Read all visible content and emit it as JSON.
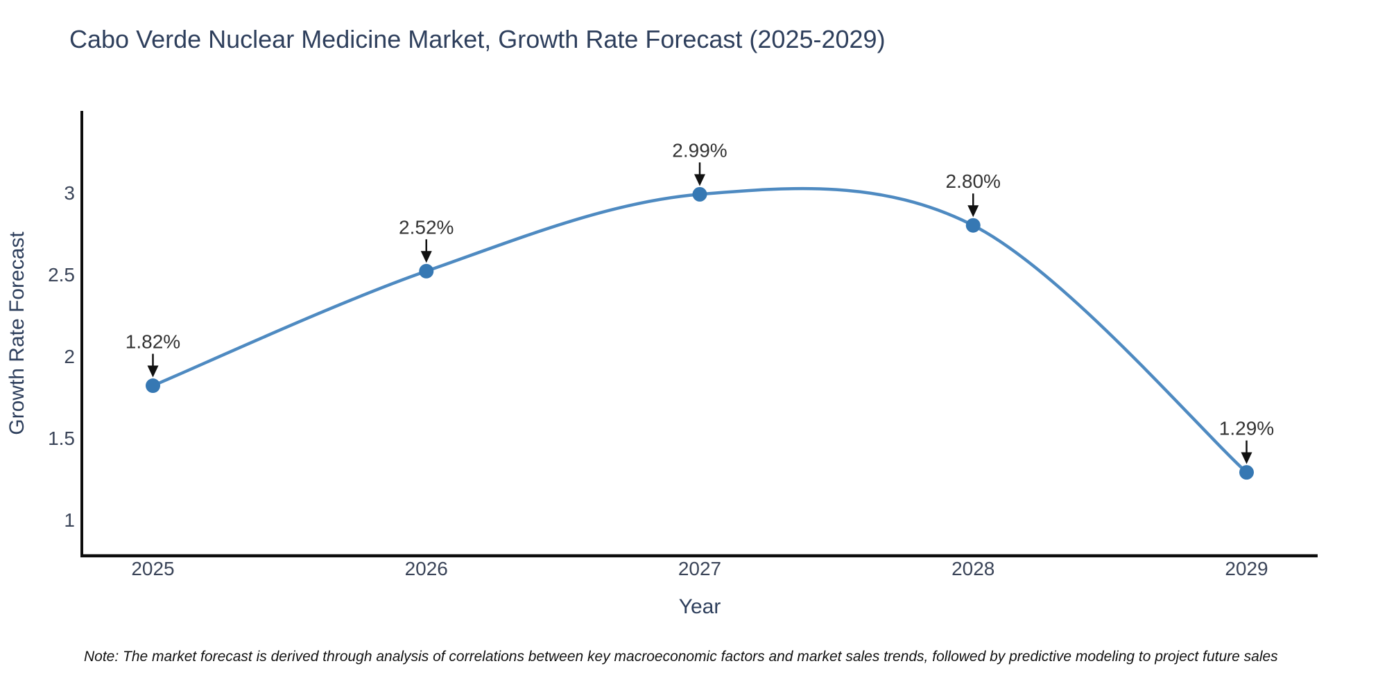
{
  "title": "Cabo Verde Nuclear Medicine Market, Growth Rate Forecast (2025-2029)",
  "note": "Note: The market forecast is derived through analysis of correlations between key macroeconomic factors and market sales trends, followed by predictive modeling to project future sales",
  "chart_data": {
    "type": "line",
    "title": "Cabo Verde Nuclear Medicine Market, Growth Rate Forecast (2025-2029)",
    "xlabel": "Year",
    "ylabel": "Growth Rate Forecast",
    "x": [
      2025,
      2026,
      2027,
      2028,
      2029
    ],
    "series": [
      {
        "name": "Growth Rate Forecast",
        "values": [
          1.82,
          2.52,
          2.99,
          2.8,
          1.29
        ]
      }
    ],
    "point_labels": [
      "1.82%",
      "2.52%",
      "2.99%",
      "2.80%",
      "1.29%"
    ],
    "xtick_labels": [
      "2025",
      "2026",
      "2027",
      "2028",
      "2029"
    ],
    "yticks": [
      1,
      1.5,
      2,
      2.5,
      3
    ],
    "ytick_labels": [
      "1",
      "1.5",
      "2",
      "2.5",
      "3"
    ],
    "ylim": [
      0.78,
      3.5
    ],
    "xlim": [
      2024.74,
      2029.26
    ],
    "grid": false,
    "legend": "none",
    "line_shape": "spline",
    "annotation_style": "label-above-with-down-arrow",
    "colors": {
      "line": "#4e8ac1",
      "marker": "#3678b3",
      "axis": "#0d0d0d",
      "tick_text": "#3a4458",
      "label_text": "#333333",
      "title_text": "#2e3f5c",
      "arrow": "#111111",
      "background": "#ffffff"
    }
  }
}
